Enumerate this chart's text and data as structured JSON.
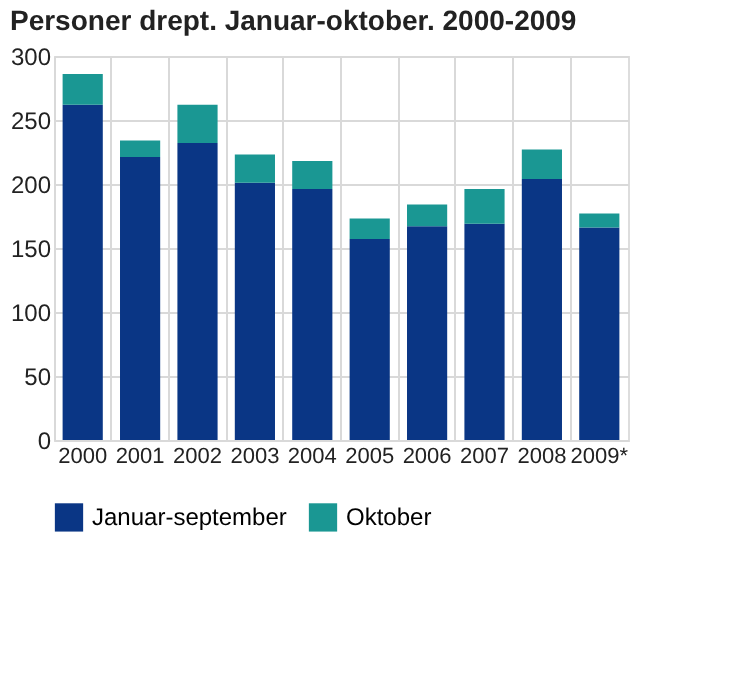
{
  "chart_data": {
    "type": "bar",
    "title": "Personer drept. Januar-oktober. 2000-2009",
    "stacked": true,
    "categories": [
      "2000",
      "2001",
      "2002",
      "2003",
      "2004",
      "2005",
      "2006",
      "2007",
      "2008",
      "2009*"
    ],
    "series": [
      {
        "name": "Januar-september",
        "color": "#0a3685",
        "values": [
          262,
          221,
          232,
          201,
          196,
          157,
          167,
          169,
          204,
          166
        ]
      },
      {
        "name": "Oktober",
        "color": "#1a9793",
        "values": [
          24,
          13,
          30,
          22,
          22,
          16,
          17,
          27,
          23,
          11
        ]
      }
    ],
    "ylim": [
      0,
      300
    ],
    "yticks": [
      0,
      50,
      100,
      150,
      200,
      250,
      300
    ],
    "grid": true,
    "legend": "bottom"
  }
}
